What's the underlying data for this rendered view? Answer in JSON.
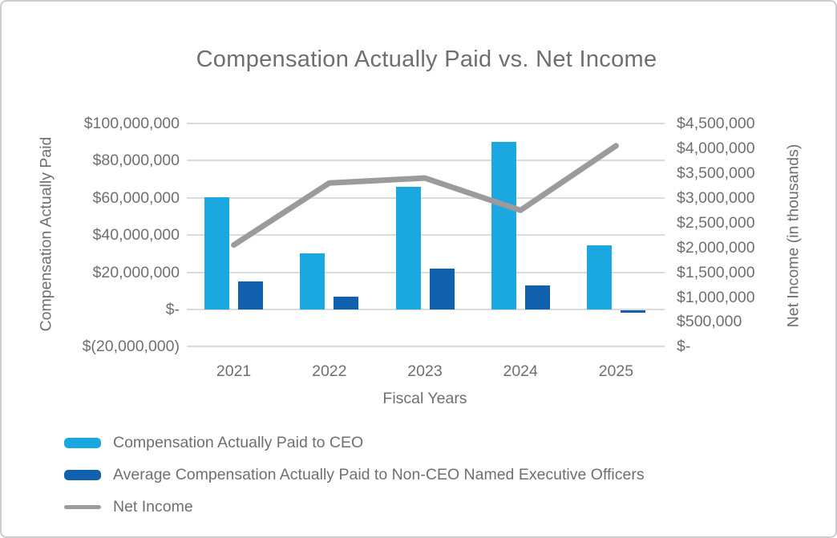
{
  "chart_data": {
    "type": "combo-bar-line",
    "title": "Compensation Actually Paid vs. Net Income",
    "categories": [
      "2021",
      "2022",
      "2023",
      "2024",
      "2025"
    ],
    "xlabel": "Fiscal Years",
    "grid": true,
    "legend_position": "bottom-left",
    "left_axis": {
      "label": "Compensation Actually Paid",
      "min": -20000000,
      "max": 100000000,
      "step": 20000000,
      "tick_labels": [
        "$100,000,000",
        "$80,000,000",
        "$60,000,000",
        "$40,000,000",
        "$20,000,000",
        "$-",
        "$(20,000,000)"
      ]
    },
    "right_axis": {
      "label": "Net Income (in thousands)",
      "min": 0,
      "max": 4500000,
      "step": 500000,
      "tick_labels": [
        "$4,500,000",
        "$4,000,000",
        "$3,500,000",
        "$3,000,000",
        "$2,500,000",
        "$2,000,000",
        "$1,500,000",
        "$1,000,000",
        "$500,000",
        "$-"
      ]
    },
    "series": [
      {
        "name": "Compensation Actually Paid to CEO",
        "type": "bar",
        "axis": "left",
        "color": "#1ba8e0",
        "values": [
          60500000,
          30000000,
          66000000,
          90000000,
          34500000
        ]
      },
      {
        "name": "Average Compensation Actually Paid to Non-CEO Named Executive Officers",
        "type": "bar",
        "axis": "left",
        "color": "#1161ae",
        "values": [
          15000000,
          7000000,
          22000000,
          13000000,
          -1000000
        ]
      },
      {
        "name": "Net Income",
        "type": "line",
        "axis": "right",
        "color": "#9b9b9b",
        "values": [
          2050000,
          3300000,
          3400000,
          2750000,
          4050000
        ]
      }
    ]
  },
  "colors": {
    "text": "#6f6f6f",
    "gridline": "#dbdbdb",
    "border": "#c9cdd2",
    "background": "#ffffff"
  }
}
